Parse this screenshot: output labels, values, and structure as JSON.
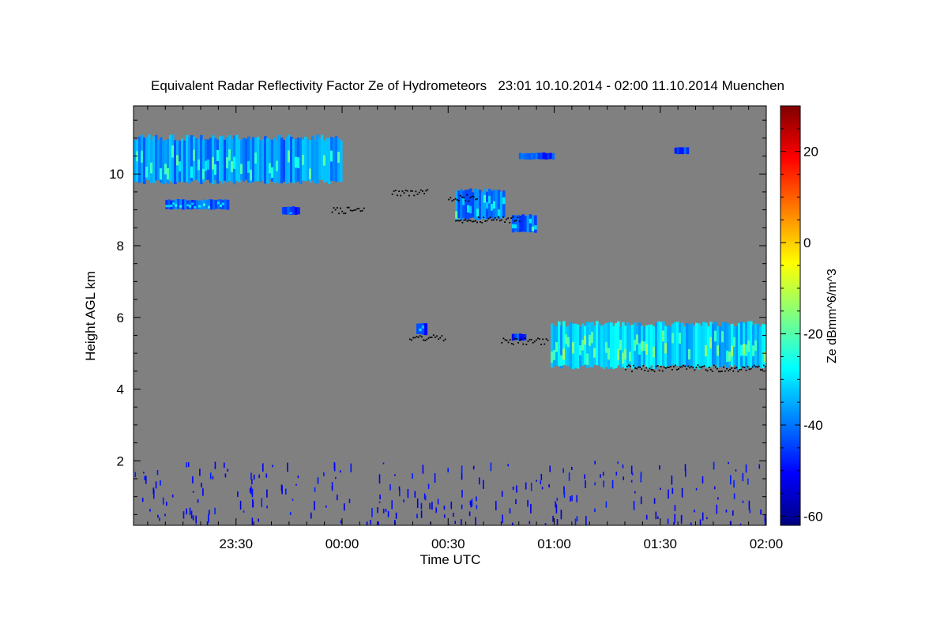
{
  "chart_data": {
    "type": "heatmap",
    "title": "Equivalent Radar Reflectivity Factor Ze of Hydrometeors   23:01 10.10.2014 - 02:00 11.10.2014 Muenchen",
    "xlabel": "Time UTC",
    "ylabel": "Height AGL km",
    "x_unit": "minutes since 23:00 UTC",
    "xlim": [
      1,
      180
    ],
    "ylim": [
      0.2,
      11.9
    ],
    "x_ticks": [
      {
        "value": 30,
        "label": "23:30"
      },
      {
        "value": 60,
        "label": "00:00"
      },
      {
        "value": 90,
        "label": "00:30"
      },
      {
        "value": 120,
        "label": "01:00"
      },
      {
        "value": 150,
        "label": "01:30"
      },
      {
        "value": 180,
        "label": "02:00"
      }
    ],
    "y_ticks": [
      {
        "value": 2,
        "label": "2"
      },
      {
        "value": 4,
        "label": "4"
      },
      {
        "value": 6,
        "label": "6"
      },
      {
        "value": 8,
        "label": "8"
      },
      {
        "value": 10,
        "label": "10"
      }
    ],
    "background_color": "#808080",
    "colorbar": {
      "label": "Ze dBmm^6/m^3",
      "range": [
        -62,
        30
      ],
      "ticks": [
        -60,
        -40,
        -20,
        0,
        20
      ],
      "colormap": [
        "#000080",
        "#0000ff",
        "#0080ff",
        "#00ffff",
        "#80ff80",
        "#ffff00",
        "#ff8000",
        "#ff0000",
        "#800000"
      ]
    },
    "echoes": [
      {
        "name": "upper-cirrus-band",
        "t_start": 1,
        "t_end": 60,
        "z_bottom": 9.7,
        "z_top": 11.1,
        "ze_dbz": -38
      },
      {
        "name": "upper-cirrus-lower-fragment",
        "t_start": 10,
        "t_end": 28,
        "z_bottom": 9.0,
        "z_top": 9.3,
        "ze_dbz": -42
      },
      {
        "name": "small-cell-2350",
        "t_start": 43,
        "t_end": 48,
        "z_bottom": 8.85,
        "z_top": 9.1,
        "ze_dbz": -45
      },
      {
        "name": "cell-0035",
        "t_start": 92,
        "t_end": 106,
        "z_bottom": 8.7,
        "z_top": 9.6,
        "ze_dbz": -40
      },
      {
        "name": "cell-0050",
        "t_start": 108,
        "t_end": 115,
        "z_bottom": 8.35,
        "z_top": 8.9,
        "ze_dbz": -42
      },
      {
        "name": "small-cell-0045",
        "t_start": 110,
        "t_end": 120,
        "z_bottom": 10.4,
        "z_top": 10.6,
        "ze_dbz": -45
      },
      {
        "name": "small-cell-0137",
        "t_start": 154,
        "t_end": 158,
        "z_bottom": 10.55,
        "z_top": 10.75,
        "ze_dbz": -45
      },
      {
        "name": "cell-0024",
        "t_start": 81,
        "t_end": 84,
        "z_bottom": 5.5,
        "z_top": 5.85,
        "ze_dbz": -45
      },
      {
        "name": "cell-0050-mid",
        "t_start": 108,
        "t_end": 112,
        "z_bottom": 5.35,
        "z_top": 5.55,
        "ze_dbz": -45
      },
      {
        "name": "mid-level-layer",
        "t_start": 119,
        "t_end": 180,
        "z_bottom": 4.55,
        "z_top": 5.9,
        "ze_dbz": -32
      }
    ],
    "cloud_base_points": [
      {
        "t_start": 57,
        "t_end": 66,
        "z": 9.0
      },
      {
        "t_start": 74,
        "t_end": 84,
        "z": 9.5
      },
      {
        "t_start": 90,
        "t_end": 98,
        "z": 9.35
      },
      {
        "t_start": 92,
        "t_end": 110,
        "z": 8.75
      },
      {
        "t_start": 79,
        "t_end": 89,
        "z": 5.45
      },
      {
        "t_start": 105,
        "t_end": 118,
        "z": 5.35
      },
      {
        "t_start": 140,
        "t_end": 180,
        "z": 4.6
      }
    ],
    "ground_clutter": {
      "z_bottom": 0.2,
      "z_top": 2.0,
      "ze_dbz": -55
    }
  }
}
